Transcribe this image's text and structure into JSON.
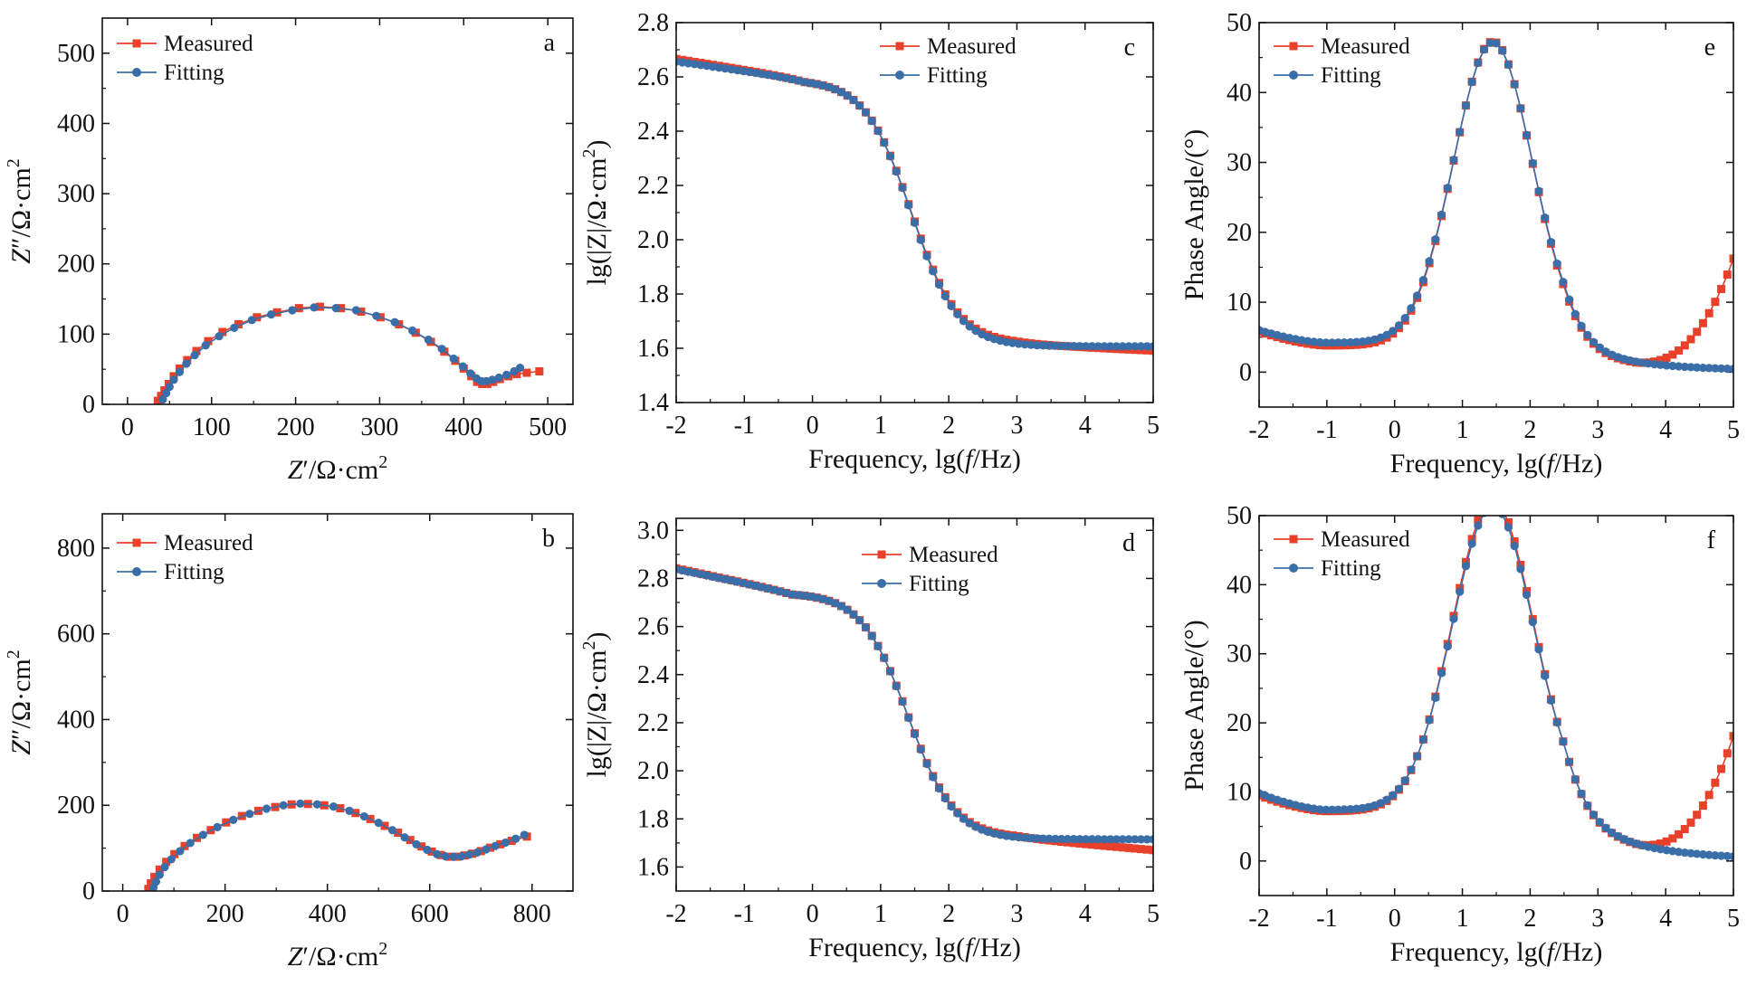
{
  "colors": {
    "measured": "#e8402a",
    "fitting": "#3a6ea8",
    "axis": "#111111"
  },
  "chart_data": [
    {
      "id": "a",
      "type": "line",
      "panel_label": "a",
      "xlabel_parts": [
        "Z",
        "′/Ω·cm",
        "2"
      ],
      "ylabel_parts": [
        "Z",
        "″/Ω·cm",
        "2"
      ],
      "xlim": [
        -30,
        530
      ],
      "ylim": [
        0,
        550
      ],
      "xticks": [
        0,
        100,
        200,
        300,
        400,
        500
      ],
      "yticks": [
        0,
        100,
        200,
        300,
        400,
        500
      ],
      "legend": [
        "Measured",
        "Fitting"
      ],
      "series": [
        {
          "name": "Measured",
          "marker": "square",
          "points": [
            [
              36,
              5
            ],
            [
              40,
              12
            ],
            [
              44,
              20
            ],
            [
              49,
              29
            ],
            [
              55,
              40
            ],
            [
              62,
              51
            ],
            [
              71,
              63
            ],
            [
              82,
              76
            ],
            [
              96,
              90
            ],
            [
              113,
              103
            ],
            [
              132,
              114
            ],
            [
              154,
              124
            ],
            [
              178,
              131
            ],
            [
              204,
              137
            ],
            [
              229,
              139
            ],
            [
              254,
              137
            ],
            [
              278,
              132
            ],
            [
              301,
              124
            ],
            [
              323,
              114
            ],
            [
              343,
              102
            ],
            [
              361,
              89
            ],
            [
              377,
              75
            ],
            [
              390,
              62
            ],
            [
              400,
              51
            ],
            [
              409,
              40
            ],
            [
              416,
              32
            ],
            [
              422,
              29
            ],
            [
              428,
              29
            ],
            [
              435,
              32
            ],
            [
              443,
              36
            ],
            [
              453,
              40
            ],
            [
              463,
              43
            ],
            [
              475,
              45
            ],
            [
              490,
              47
            ]
          ]
        },
        {
          "name": "Fitting",
          "marker": "circle",
          "points": [
            [
              42,
              7
            ],
            [
              46,
              16
            ],
            [
              50,
              25
            ],
            [
              55,
              35
            ],
            [
              62,
              46
            ],
            [
              70,
              58
            ],
            [
              80,
              70
            ],
            [
              93,
              84
            ],
            [
              109,
              97
            ],
            [
              127,
              109
            ],
            [
              148,
              120
            ],
            [
              171,
              128
            ],
            [
              196,
              134
            ],
            [
              222,
              138
            ],
            [
              248,
              137
            ],
            [
              272,
              134
            ],
            [
              296,
              126
            ],
            [
              318,
              117
            ],
            [
              339,
              105
            ],
            [
              358,
              92
            ],
            [
              374,
              79
            ],
            [
              388,
              65
            ],
            [
              399,
              54
            ],
            [
              408,
              44
            ],
            [
              415,
              37
            ],
            [
              421,
              33
            ],
            [
              427,
              33
            ],
            [
              434,
              35
            ],
            [
              442,
              38
            ],
            [
              451,
              42
            ],
            [
              460,
              47
            ],
            [
              467,
              52
            ]
          ]
        }
      ]
    },
    {
      "id": "b",
      "type": "line",
      "panel_label": "b",
      "xlabel_parts": [
        "Z",
        "′/Ω·cm",
        "2"
      ],
      "ylabel_parts": [
        "Z",
        "″/Ω·cm",
        "2"
      ],
      "xlim": [
        -40,
        880
      ],
      "ylim": [
        0,
        880
      ],
      "xticks": [
        0,
        200,
        400,
        600,
        800
      ],
      "yticks": [
        0,
        200,
        400,
        600,
        800
      ],
      "legend": [
        "Measured",
        "Fitting"
      ],
      "series": [
        {
          "name": "Measured",
          "marker": "square",
          "points": [
            [
              50,
              5
            ],
            [
              55,
              18
            ],
            [
              62,
              33
            ],
            [
              72,
              50
            ],
            [
              85,
              68
            ],
            [
              101,
              86
            ],
            [
              121,
              105
            ],
            [
              145,
              124
            ],
            [
              172,
              142
            ],
            [
              202,
              160
            ],
            [
              233,
              175
            ],
            [
              265,
              187
            ],
            [
              298,
              196
            ],
            [
              330,
              202
            ],
            [
              362,
              203
            ],
            [
              394,
              200
            ],
            [
              425,
              193
            ],
            [
              455,
              182
            ],
            [
              484,
              168
            ],
            [
              512,
              152
            ],
            [
              538,
              136
            ],
            [
              562,
              119
            ],
            [
              584,
              104
            ],
            [
              604,
              92
            ],
            [
              622,
              84
            ],
            [
              638,
              80
            ],
            [
              653,
              80
            ],
            [
              668,
              83
            ],
            [
              683,
              87
            ],
            [
              700,
              93
            ],
            [
              718,
              101
            ],
            [
              738,
              109
            ],
            [
              760,
              117
            ],
            [
              790,
              127
            ]
          ]
        },
        {
          "name": "Fitting",
          "marker": "circle",
          "points": [
            [
              60,
              8
            ],
            [
              65,
              22
            ],
            [
              72,
              38
            ],
            [
              82,
              56
            ],
            [
              95,
              74
            ],
            [
              112,
              93
            ],
            [
              132,
              112
            ],
            [
              157,
              131
            ],
            [
              185,
              149
            ],
            [
              216,
              166
            ],
            [
              248,
              180
            ],
            [
              281,
              192
            ],
            [
              314,
              200
            ],
            [
              347,
              204
            ],
            [
              380,
              202
            ],
            [
              412,
              197
            ],
            [
              443,
              187
            ],
            [
              472,
              174
            ],
            [
              500,
              159
            ],
            [
              527,
              142
            ],
            [
              551,
              125
            ],
            [
              574,
              109
            ],
            [
              595,
              96
            ],
            [
              614,
              86
            ],
            [
              631,
              81
            ],
            [
              647,
              80
            ],
            [
              662,
              81
            ],
            [
              677,
              85
            ],
            [
              693,
              90
            ],
            [
              710,
              97
            ],
            [
              728,
              105
            ],
            [
              748,
              113
            ],
            [
              768,
              122
            ],
            [
              785,
              131
            ]
          ]
        }
      ]
    },
    {
      "id": "c",
      "type": "line",
      "panel_label": "c",
      "xlabel_parts": [
        "Frequency, lg(",
        "f",
        "/Hz)"
      ],
      "ylabel_parts": [
        "lg(|Z|/Ω·cm",
        "2",
        ")"
      ],
      "xlim": [
        -2,
        5
      ],
      "ylim": [
        1.4,
        2.8
      ],
      "xticks": [
        -2,
        -1,
        0,
        1,
        2,
        3,
        4,
        5
      ],
      "yticks": [
        1.4,
        1.6,
        1.8,
        2.0,
        2.2,
        2.4,
        2.6,
        2.8
      ],
      "yfmt": 1,
      "legend": [
        "Measured",
        "Fitting"
      ],
      "series": [
        {
          "name": "Measured",
          "marker": "square",
          "model": {
            "kind": "mag",
            "lo": 1.615,
            "hi": 2.59,
            "c": 1.45,
            "w": 0.75,
            "lf_slope": 0.04,
            "lf_c": -0.1,
            "tail": -0.012
          }
        },
        {
          "name": "Fitting",
          "marker": "circle",
          "model": {
            "kind": "mag",
            "lo": 1.607,
            "hi": 2.59,
            "c": 1.45,
            "w": 0.75,
            "lf_slope": 0.035,
            "lf_c": -0.1,
            "tail": 0
          }
        }
      ]
    },
    {
      "id": "d",
      "type": "line",
      "panel_label": "d",
      "xlabel_parts": [
        "Frequency, lg(",
        "f",
        "/Hz)"
      ],
      "ylabel_parts": [
        "lg(|Z|/Ω·cm",
        "2",
        ")"
      ],
      "xlim": [
        -2,
        5
      ],
      "ylim": [
        1.5,
        3.05
      ],
      "xticks": [
        -2,
        -1,
        0,
        1,
        2,
        3,
        4,
        5
      ],
      "yticks": [
        1.6,
        1.8,
        2.0,
        2.2,
        2.4,
        2.6,
        2.8,
        3.0
      ],
      "yfmt": 1,
      "legend": [
        "Measured",
        "Fitting"
      ],
      "series": [
        {
          "name": "Measured",
          "marker": "square",
          "model": {
            "kind": "mag",
            "lo": 1.72,
            "hi": 2.74,
            "c": 1.4,
            "w": 0.75,
            "lf_slope": 0.06,
            "lf_c": -0.3,
            "tail": -0.025
          }
        },
        {
          "name": "Fitting",
          "marker": "circle",
          "model": {
            "kind": "mag",
            "lo": 1.715,
            "hi": 2.74,
            "c": 1.4,
            "w": 0.75,
            "lf_slope": 0.058,
            "lf_c": -0.3,
            "tail": 0
          }
        }
      ]
    },
    {
      "id": "e",
      "type": "line",
      "panel_label": "e",
      "xlabel_parts": [
        "Frequency, lg(",
        "f",
        "/Hz)"
      ],
      "ylabel_parts": [
        "Phase Angle/(°)"
      ],
      "xlim": [
        -2,
        5
      ],
      "ylim": [
        -5,
        50
      ],
      "xticks": [
        -2,
        -1,
        0,
        1,
        2,
        3,
        4,
        5
      ],
      "yticks": [
        0,
        10,
        20,
        30,
        40,
        50
      ],
      "legend": [
        "Measured",
        "Fitting"
      ],
      "series": [
        {
          "name": "Measured",
          "marker": "square",
          "model": {
            "kind": "phase",
            "peak": 43.5,
            "c": 1.45,
            "w": 0.58,
            "base": 0.2,
            "lf": 5.6,
            "min_at": -1,
            "min": 3.6,
            "up": 14.5
          }
        },
        {
          "name": "Fitting",
          "marker": "circle",
          "model": {
            "kind": "phase",
            "peak": 43.0,
            "c": 1.45,
            "w": 0.58,
            "base": 0.2,
            "lf": 5.8,
            "min_at": -1,
            "min": 4.0,
            "up": 0
          }
        }
      ]
    },
    {
      "id": "f",
      "type": "line",
      "panel_label": "f",
      "xlabel_parts": [
        "Frequency, lg(",
        "f",
        "/Hz)"
      ],
      "ylabel_parts": [
        "Phase Angle/(°)"
      ],
      "xlim": [
        -2,
        5
      ],
      "ylim": [
        -5,
        50
      ],
      "xticks": [
        -2,
        -1,
        0,
        1,
        2,
        3,
        4,
        5
      ],
      "yticks": [
        0,
        10,
        20,
        30,
        40,
        50
      ],
      "legend": [
        "Measured",
        "Fitting"
      ],
      "series": [
        {
          "name": "Measured",
          "marker": "square",
          "model": {
            "kind": "phase",
            "peak": 45.0,
            "c": 1.45,
            "w": 0.6,
            "base": 0.2,
            "lf": 9.3,
            "min_at": -1,
            "min": 7.0,
            "up": 16
          }
        },
        {
          "name": "Fitting",
          "marker": "circle",
          "model": {
            "kind": "phase",
            "peak": 44.0,
            "c": 1.45,
            "w": 0.6,
            "base": 0.2,
            "lf": 9.6,
            "min_at": -1,
            "min": 7.2,
            "up": 0
          }
        }
      ]
    }
  ]
}
